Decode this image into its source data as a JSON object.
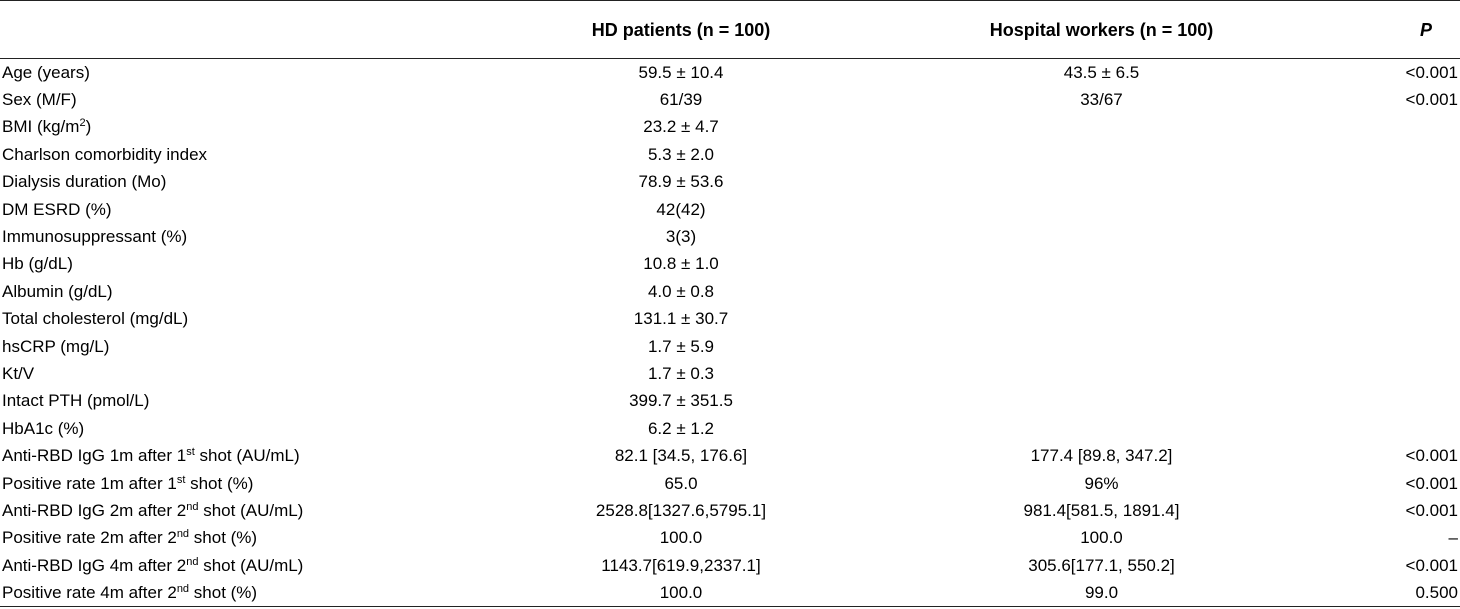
{
  "table": {
    "headers": {
      "variable": "",
      "hd": "HD patients (n = 100)",
      "hw": "Hospital workers (n = 100)",
      "p": "P"
    },
    "rows": [
      {
        "label": "Age (years)",
        "sup": "",
        "suffix": "",
        "hd": "59.5 ± 10.4",
        "hw": "43.5 ± 6.5",
        "p": "<0.001"
      },
      {
        "label": "Sex (M/F)",
        "sup": "",
        "suffix": "",
        "hd": "61/39",
        "hw": "33/67",
        "p": "<0.001"
      },
      {
        "label": "BMI (kg/m",
        "sup": "2",
        "suffix": ")",
        "hd": "23.2 ± 4.7",
        "hw": "",
        "p": ""
      },
      {
        "label": "Charlson comorbidity index",
        "sup": "",
        "suffix": "",
        "hd": "5.3 ± 2.0",
        "hw": "",
        "p": ""
      },
      {
        "label": "Dialysis duration (Mo)",
        "sup": "",
        "suffix": "",
        "hd": "78.9 ± 53.6",
        "hw": "",
        "p": ""
      },
      {
        "label": "DM ESRD (%)",
        "sup": "",
        "suffix": "",
        "hd": "42(42)",
        "hw": "",
        "p": ""
      },
      {
        "label": "Immunosuppressant (%)",
        "sup": "",
        "suffix": "",
        "hd": "3(3)",
        "hw": "",
        "p": ""
      },
      {
        "label": "Hb (g/dL)",
        "sup": "",
        "suffix": "",
        "hd": "10.8 ± 1.0",
        "hw": "",
        "p": ""
      },
      {
        "label": "Albumin (g/dL)",
        "sup": "",
        "suffix": "",
        "hd": "4.0 ± 0.8",
        "hw": "",
        "p": ""
      },
      {
        "label": "Total cholesterol (mg/dL)",
        "sup": "",
        "suffix": "",
        "hd": "131.1 ± 30.7",
        "hw": "",
        "p": ""
      },
      {
        "label": "hsCRP (mg/L)",
        "sup": "",
        "suffix": "",
        "hd": "1.7 ± 5.9",
        "hw": "",
        "p": ""
      },
      {
        "label": "Kt/V",
        "sup": "",
        "suffix": "",
        "hd": "1.7 ± 0.3",
        "hw": "",
        "p": ""
      },
      {
        "label": "Intact PTH (pmol/L)",
        "sup": "",
        "suffix": "",
        "hd": "399.7 ± 351.5",
        "hw": "",
        "p": ""
      },
      {
        "label": "HbA1c (%)",
        "sup": "",
        "suffix": "",
        "hd": "6.2 ± 1.2",
        "hw": "",
        "p": ""
      },
      {
        "label": "Anti-RBD IgG 1m after 1",
        "sup": "st",
        "suffix": " shot (AU/mL)",
        "hd": "82.1 [34.5, 176.6]",
        "hw": "177.4 [89.8, 347.2]",
        "p": "<0.001"
      },
      {
        "label": "Positive rate 1m after 1",
        "sup": "st",
        "suffix": " shot (%)",
        "hd": "65.0",
        "hw": "96%",
        "p": "<0.001"
      },
      {
        "label": "Anti-RBD IgG 2m after 2",
        "sup": "nd",
        "suffix": " shot (AU/mL)",
        "hd": "2528.8[1327.6,5795.1]",
        "hw": "981.4[581.5, 1891.4]",
        "p": "<0.001"
      },
      {
        "label": "Positive rate 2m after 2",
        "sup": "nd",
        "suffix": " shot (%)",
        "hd": "100.0",
        "hw": "100.0",
        "p": "–"
      },
      {
        "label": "Anti-RBD IgG 4m after 2",
        "sup": "nd",
        "suffix": " shot (AU/mL)",
        "hd": "1143.7[619.9,2337.1]",
        "hw": "305.6[177.1, 550.2]",
        "p": "<0.001"
      },
      {
        "label": "Positive rate 4m after 2",
        "sup": "nd",
        "suffix": " shot (%)",
        "hd": "100.0",
        "hw": "99.0",
        "p": "0.500"
      }
    ]
  }
}
